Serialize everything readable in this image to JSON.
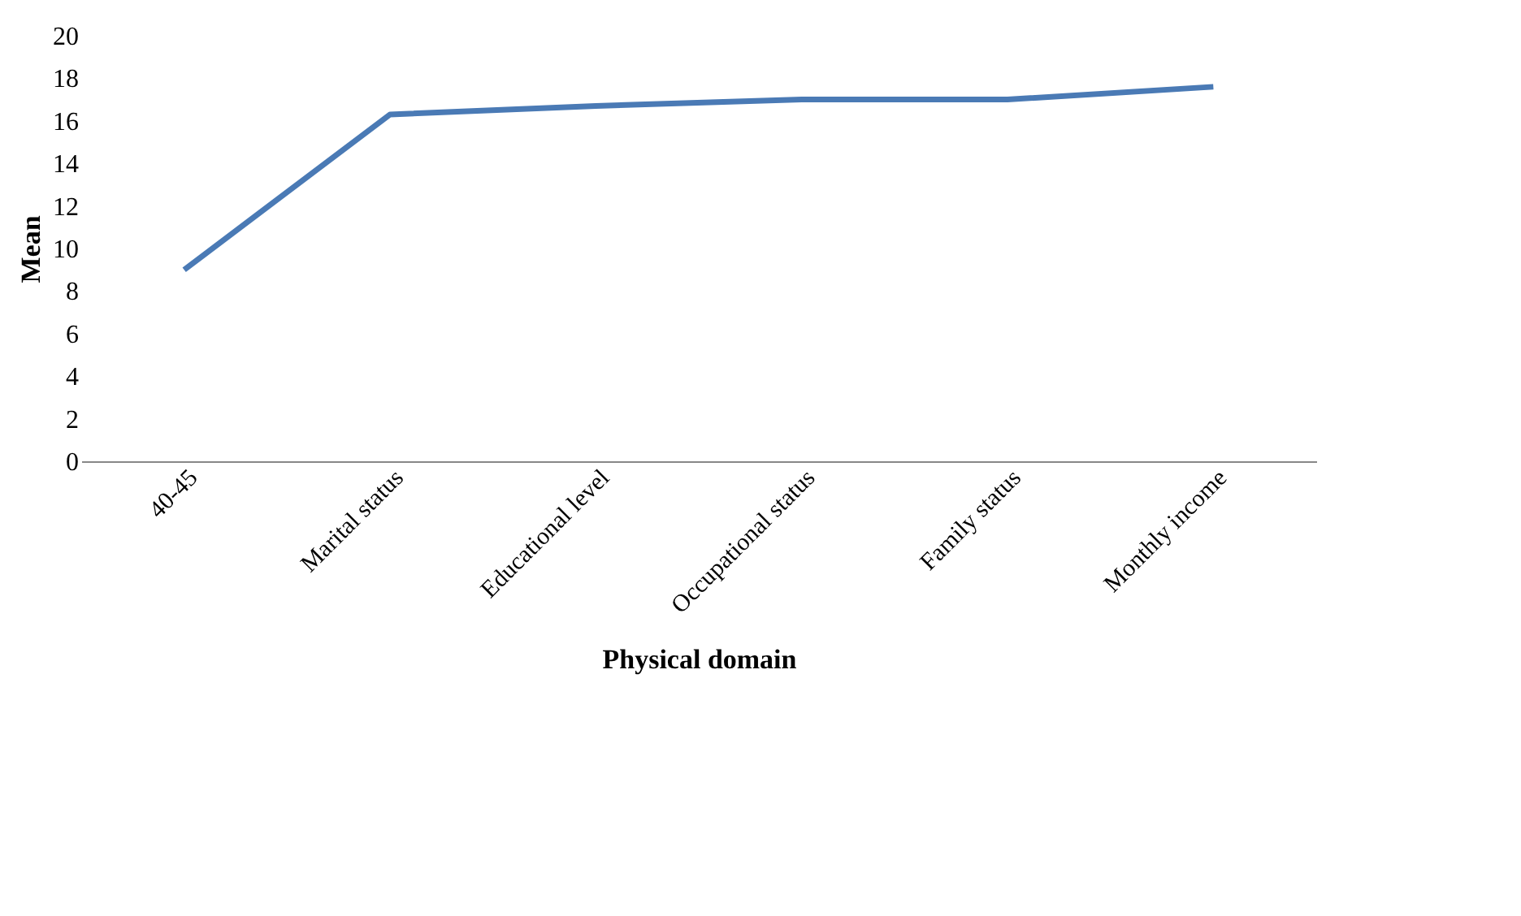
{
  "chart_data": {
    "type": "line",
    "xlabel": "Physical domain",
    "ylabel": "Mean",
    "categories": [
      "40-45",
      "Marital status",
      "Educational level",
      "Occupational status",
      "Family status",
      "Monthly income"
    ],
    "series": [
      {
        "color": "#4a7ab5",
        "values": [
          9,
          16.3,
          16.7,
          17,
          17,
          17.6
        ]
      }
    ],
    "ylim": [
      0,
      20
    ],
    "yticks": [
      0,
      2,
      4,
      6,
      8,
      10,
      12,
      14,
      16,
      18,
      20
    ],
    "grid": false,
    "marker": "none",
    "line_style": "solid"
  }
}
